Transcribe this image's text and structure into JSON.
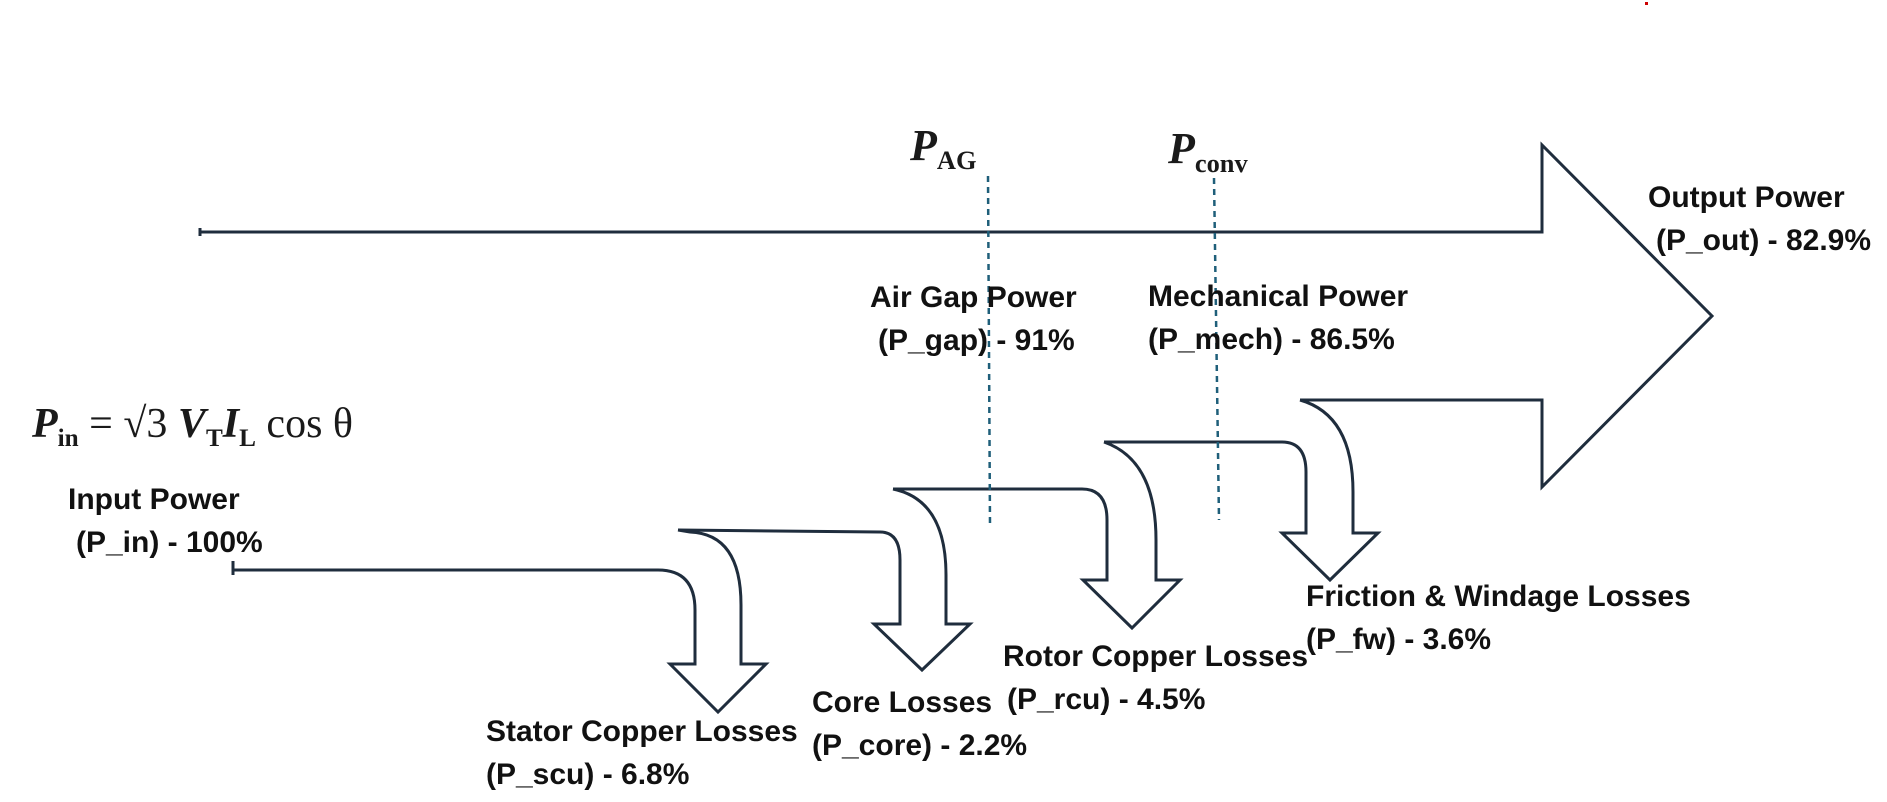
{
  "diagram": {
    "math_labels": {
      "p_ag": "AG",
      "p_conv": "conv",
      "input_equation": {
        "lhs_sub": "in",
        "equals": "=",
        "sqrt": "√3",
        "v_sub": "T",
        "i_sub": "L",
        "cos": "cos θ"
      }
    },
    "stages": {
      "input": {
        "line1": "Input Power",
        "line2": "(P_in) - 100%"
      },
      "air_gap": {
        "line1": "Air Gap Power",
        "line2": "(P_gap) - 91%"
      },
      "mechanical": {
        "line1": "Mechanical Power",
        "line2": "(P_mech) - 86.5%"
      },
      "output": {
        "line1": "Output Power",
        "line2": "(P_out) - 82.9%"
      }
    },
    "losses": {
      "stator_copper": {
        "line1": "Stator Copper Losses",
        "line2": "(P_scu) - 6.8%"
      },
      "core": {
        "line1": "Core Losses",
        "line2": "(P_core) - 2.2%"
      },
      "rotor_copper": {
        "line1": "Rotor Copper Losses",
        "line2": "(P_rcu) - 4.5%"
      },
      "friction_windage": {
        "line1": "Friction & Windage Losses",
        "line2": "(P_fw) - 3.6%"
      }
    },
    "colors": {
      "arrow_outline": "#1f2d3d",
      "divider": "#1f5f7a",
      "text": "#111111",
      "accent_dot": "#cc0000"
    }
  }
}
